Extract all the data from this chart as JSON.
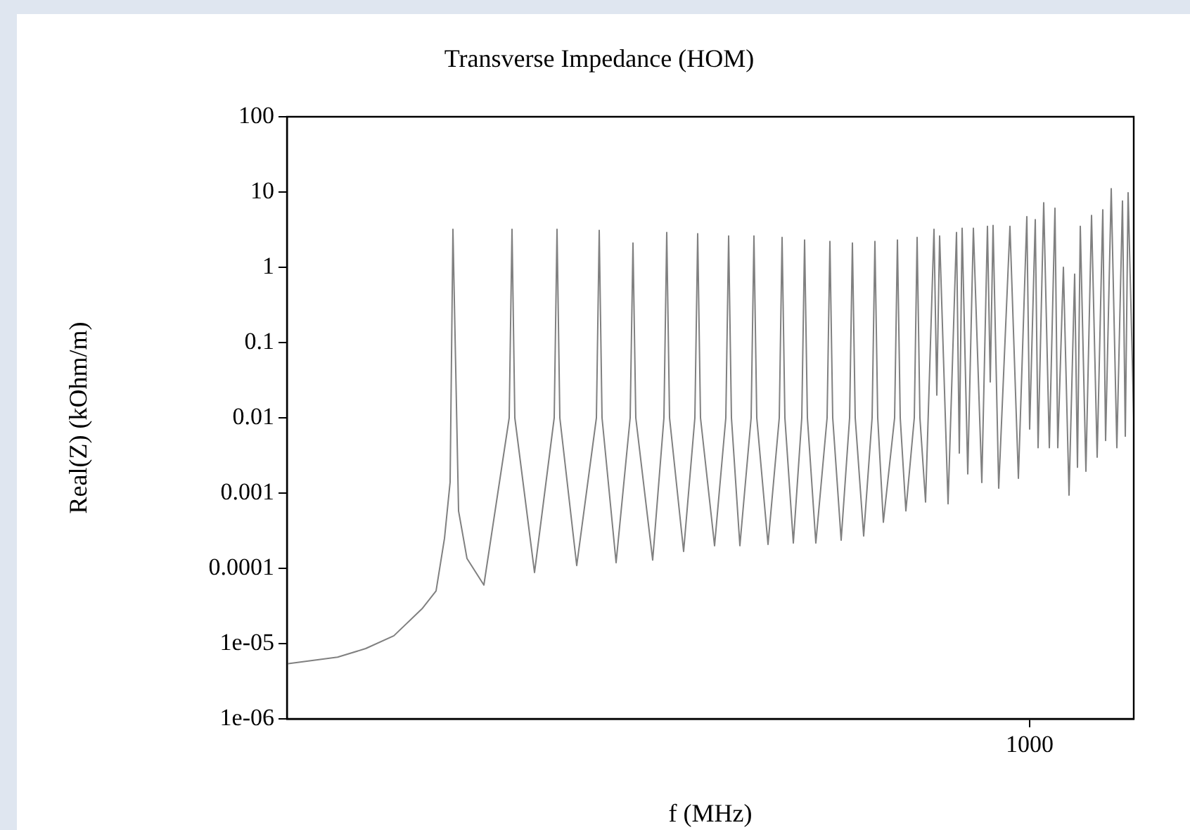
{
  "chart_data": {
    "type": "line",
    "title": "Transverse Impedance (HOM)",
    "xlabel": "f (MHz)",
    "ylabel": "Real(Z) (kOhm/m)",
    "log": true,
    "ylim": [
      1e-06,
      100
    ],
    "yticks": [
      {
        "value": 1e-06,
        "label": "1e-06"
      },
      {
        "value": 1e-05,
        "label": "1e-05"
      },
      0.0001,
      0.001,
      0.01,
      0.1,
      1,
      10,
      100
    ],
    "categories": [
      null,
      null,
      null,
      null,
      null,
      null,
      null,
      null,
      null,
      null,
      null,
      null,
      null,
      null,
      null,
      null,
      null,
      null,
      null,
      null,
      null,
      null,
      null,
      null,
      null,
      null,
      null,
      null,
      null,
      null,
      null,
      null,
      null,
      null,
      null,
      null,
      null,
      null,
      null,
      null,
      null,
      null,
      null,
      null,
      null,
      null,
      null,
      null,
      null,
      null,
      null,
      null,
      null,
      null,
      null,
      null,
      null,
      null,
      null,
      null,
      null,
      null,
      null,
      null,
      null,
      null,
      null,
      null,
      null,
      null,
      null,
      null,
      null,
      null,
      null,
      null,
      null,
      null,
      null,
      null,
      null,
      null,
      null,
      null,
      null,
      null,
      null,
      null,
      null,
      null,
      null,
      null,
      null,
      null,
      null,
      null,
      null,
      null,
      null,
      null,
      null,
      null,
      null,
      null,
      null,
      null,
      null,
      null,
      null,
      null,
      null,
      null,
      null,
      null,
      null,
      null,
      null,
      null,
      null,
      null,
      null,
      null,
      null,
      null,
      null,
      null,
      null,
      null,
      null,
      null,
      null,
      null,
      null,
      null,
      null,
      null,
      null,
      null,
      null,
      null,
      null,
      null,
      null,
      null,
      null,
      null,
      null,
      null,
      null,
      null,
      null,
      null,
      null,
      null,
      null,
      null,
      null,
      null,
      null,
      null,
      null,
      null,
      null,
      null,
      null,
      null,
      null,
      null,
      null,
      null,
      null,
      null,
      null,
      null,
      null,
      null,
      null,
      null,
      null,
      null,
      null,
      null,
      null,
      null,
      null,
      null,
      null,
      null,
      null,
      null,
      null,
      null,
      null,
      null,
      null,
      null,
      null,
      null,
      null,
      null,
      null,
      null,
      null,
      null,
      null,
      null,
      null,
      null,
      null,
      null,
      null,
      null,
      null,
      null,
      null,
      null,
      null,
      null,
      null,
      null,
      null,
      null,
      null,
      null,
      null,
      null,
      null,
      null,
      null,
      null,
      null,
      null,
      null,
      null,
      null,
      null,
      null,
      null,
      null,
      null,
      null,
      null,
      null,
      null,
      null,
      null,
      null,
      null,
      null,
      null,
      null,
      null,
      null,
      null,
      null,
      null,
      null,
      null,
      null,
      null,
      null,
      null,
      null,
      null,
      "1000",
      null,
      null,
      null,
      null,
      null,
      null,
      null,
      null,
      null,
      null,
      null,
      null,
      null,
      null,
      null,
      null,
      null,
      null,
      null,
      null,
      null,
      null,
      null,
      null,
      null,
      null,
      null,
      null,
      null,
      null,
      null,
      null,
      null,
      null,
      null,
      null,
      null
    ],
    "series": [
      {
        "color": "#808080",
        "values": [
          5.4e-06,
          null,
          null,
          null,
          null,
          null,
          null,
          null,
          null,
          null,
          null,
          null,
          null,
          null,
          null,
          null,
          null,
          null,
          6.6e-06,
          null,
          null,
          null,
          null,
          null,
          null,
          null,
          null,
          null,
          8.6e-06,
          null,
          null,
          null,
          null,
          null,
          null,
          null,
          null,
          null,
          1.27e-05,
          null,
          null,
          null,
          null,
          null,
          null,
          null,
          null,
          null,
          2.9e-05,
          null,
          null,
          null,
          null,
          5e-05,
          null,
          null,
          0.00025,
          null,
          0.0014,
          3.2,
          null,
          0.00058,
          null,
          null,
          0.000135,
          null,
          null,
          null,
          null,
          null,
          6e-05,
          null,
          null,
          null,
          null,
          null,
          null,
          null,
          null,
          0.01,
          3.2,
          0.01,
          null,
          null,
          null,
          null,
          null,
          null,
          8.8e-05,
          null,
          null,
          null,
          null,
          null,
          null,
          0.01,
          3.2,
          0.01,
          null,
          null,
          null,
          null,
          null,
          0.000109,
          null,
          null,
          null,
          null,
          null,
          null,
          0.01,
          3.1,
          0.01,
          null,
          null,
          null,
          null,
          0.000119,
          null,
          null,
          null,
          null,
          0.01,
          2.1,
          0.01,
          null,
          null,
          null,
          null,
          null,
          0.000129,
          null,
          null,
          null,
          0.01,
          2.9,
          0.01,
          null,
          null,
          null,
          null,
          0.000168,
          null,
          null,
          null,
          0.01,
          2.8,
          0.01,
          null,
          null,
          null,
          null,
          0.0002,
          null,
          null,
          null,
          0.01,
          2.6,
          0.01,
          null,
          null,
          0.0002,
          null,
          null,
          null,
          0.01,
          2.6,
          0.01,
          null,
          null,
          null,
          0.000208,
          null,
          null,
          null,
          0.01,
          2.5,
          0.01,
          null,
          null,
          0.000217,
          null,
          null,
          0.01,
          2.3,
          0.01,
          null,
          null,
          0.000217,
          null,
          null,
          null,
          0.01,
          2.2,
          0.01,
          null,
          null,
          0.000237,
          null,
          null,
          0.01,
          2.1,
          0.01,
          null,
          null,
          0.000269,
          null,
          null,
          0.01,
          2.2,
          0.01,
          null,
          0.00041,
          null,
          null,
          null,
          0.01,
          2.3,
          0.01,
          null,
          0.00058,
          null,
          null,
          0.01,
          2.5,
          0.01,
          null,
          0.00076,
          null,
          null,
          3.2,
          0.02,
          2.6,
          null,
          null,
          0.00072,
          null,
          null,
          2.9,
          0.0034,
          3.3,
          null,
          0.0018,
          null,
          3.3,
          null,
          null,
          0.00138,
          null,
          3.5,
          0.03,
          3.6,
          null,
          0.00116,
          null,
          null,
          null,
          3.5,
          null,
          null,
          0.00157,
          null,
          null,
          4.7,
          0.0071,
          null,
          4.3,
          0.004,
          null,
          7.2,
          null,
          0.004,
          null,
          6.1,
          0.004,
          null,
          1.0,
          null,
          0.00094,
          null,
          0.81,
          0.0022,
          3.5,
          null,
          0.00195,
          null,
          4.9,
          null,
          0.003,
          null,
          5.8,
          0.005,
          null,
          11.1,
          null,
          0.004,
          null,
          7.6,
          0.0057,
          9.8,
          null,
          0.01
        ]
      }
    ]
  }
}
